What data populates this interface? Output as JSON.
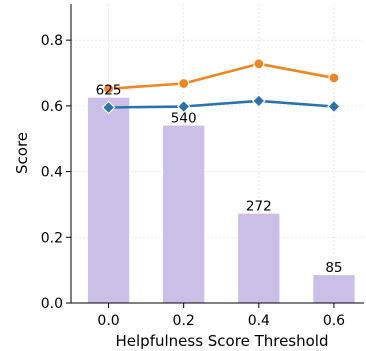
{
  "chart_data": {
    "type": "bar",
    "xlabel": "Helpfulness Score Threshold",
    "ylabel": "Score",
    "categories": [
      "0.0",
      "0.2",
      "0.4",
      "0.6"
    ],
    "x": [
      0.0,
      0.2,
      0.4,
      0.6
    ],
    "xlim": [
      -0.1,
      0.68
    ],
    "ylim": [
      0.0,
      0.91
    ],
    "yticks": [
      "0.0",
      "0.2",
      "0.4",
      "0.6",
      "0.8"
    ],
    "ytick_values": [
      0.0,
      0.2,
      0.4,
      0.6,
      0.8
    ],
    "grid": true,
    "bars": {
      "labels": [
        "625",
        "540",
        "272",
        "85"
      ],
      "values": [
        0.625,
        0.54,
        0.272,
        0.085
      ],
      "color": "#cbbfe8"
    },
    "series": [
      {
        "values": [
          0.652,
          0.668,
          0.728,
          0.685
        ],
        "color": "#f28522",
        "marker": "circle"
      },
      {
        "values": [
          0.595,
          0.598,
          0.615,
          0.598
        ],
        "color": "#2a73b0",
        "marker": "diamond"
      }
    ]
  }
}
